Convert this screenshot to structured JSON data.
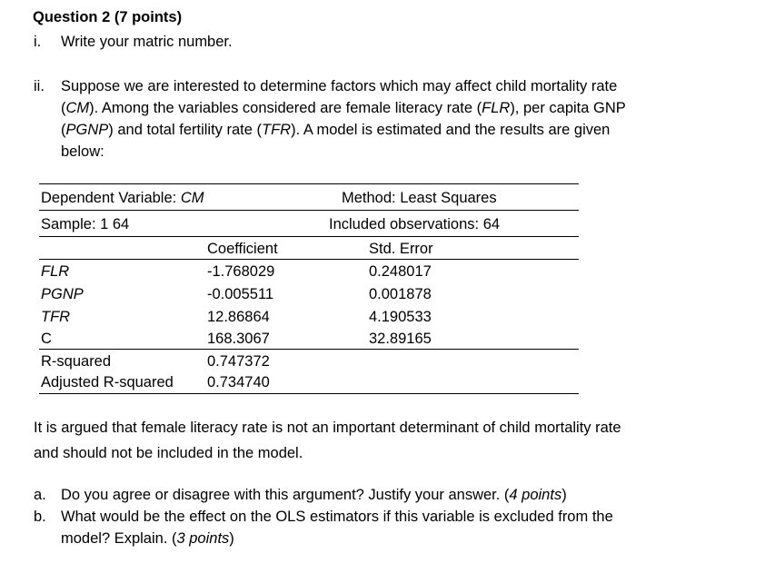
{
  "question": {
    "title": "Question 2 (7 points)",
    "part_i": {
      "marker": "i.",
      "text": "Write your matric number."
    },
    "part_ii": {
      "marker": "ii.",
      "lines": [
        [
          "Suppose we are interested to determine factors which may affect child mortality rate"
        ],
        [
          "(",
          "CM",
          "). Among the variables considered are female literacy rate (",
          "FLR",
          "), per capita GNP"
        ],
        [
          "(",
          "PGNP",
          ") and total fertility rate (",
          "TFR",
          "). A model is estimated and the results are given"
        ],
        [
          "below:"
        ]
      ]
    }
  },
  "regression_table": {
    "dependent_label": "Dependent Variable: ",
    "dependent_var": "CM",
    "method": "Method: Least Squares",
    "sample": "Sample: 1 64",
    "included_obs": "Included observations: 64",
    "col_coefficient": "Coefficient",
    "col_std_error": "Std. Error",
    "rows": [
      {
        "variable": "FLR",
        "coefficient": "-1.768029",
        "std_error": "0.248017"
      },
      {
        "variable": "PGNP",
        "coefficient": "-0.005511",
        "std_error": "0.001878"
      },
      {
        "variable": "TFR",
        "coefficient": "12.86864",
        "std_error": "4.190533"
      },
      {
        "variable": "C",
        "coefficient": "168.3067",
        "std_error": "32.89165"
      }
    ],
    "r_squared_label": "R-squared",
    "r_squared": "0.747372",
    "adj_r_squared_label": "Adjusted R-squared",
    "adj_r_squared": "0.734740"
  },
  "argument": {
    "line1": "It is argued that female literacy rate is not an important determinant of child mortality rate",
    "line2": "and should not be included in the model."
  },
  "subquestions": [
    {
      "marker": "a.",
      "text": "Do you agree or disagree with this argument? Justify your answer. (",
      "points": "4 points",
      "close": ")"
    },
    {
      "marker": "b.",
      "text": "What would be the effect on the OLS estimators if this variable is excluded from the",
      "text2": "model? Explain. (",
      "points": "3 points",
      "close": ")"
    }
  ]
}
